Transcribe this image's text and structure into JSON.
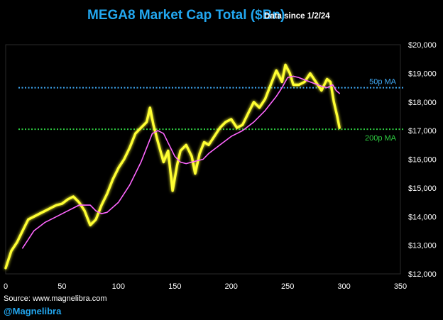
{
  "chart_data": {
    "type": "line",
    "title": "MEGA8 Market Cap Total ($Bn)",
    "subtitle": "Data since 1/2/24",
    "xlim": [
      0,
      350
    ],
    "ylim": [
      12000,
      20000
    ],
    "x_ticks": [
      0,
      50,
      100,
      150,
      200,
      250,
      300,
      350
    ],
    "y_ticks": [
      12000,
      13000,
      14000,
      15000,
      16000,
      17000,
      18000,
      19000,
      20000
    ],
    "y_tick_labels": [
      "$12,000",
      "$13,000",
      "$14,000",
      "$15,000",
      "$16,000",
      "$17,000",
      "$18,000",
      "$19,000",
      "$20,000"
    ],
    "grid": false,
    "series": [
      {
        "color": "#ffff33",
        "x": [
          0,
          5,
          10,
          15,
          20,
          25,
          30,
          35,
          40,
          45,
          50,
          55,
          60,
          65,
          70,
          75,
          80,
          85,
          90,
          95,
          100,
          105,
          110,
          115,
          120,
          125,
          128,
          131,
          135,
          140,
          144,
          148,
          152,
          155,
          160,
          165,
          168,
          172,
          176,
          180,
          185,
          190,
          195,
          200,
          205,
          210,
          215,
          220,
          225,
          230,
          235,
          240,
          245,
          248,
          252,
          255,
          260,
          265,
          270,
          275,
          280,
          285,
          288,
          291,
          294,
          296
        ],
        "values": [
          12200,
          12800,
          13100,
          13500,
          13900,
          14000,
          14100,
          14200,
          14300,
          14400,
          14450,
          14600,
          14700,
          14500,
          14200,
          13700,
          13900,
          14400,
          14800,
          15300,
          15700,
          16000,
          16400,
          16900,
          17100,
          17300,
          17800,
          17200,
          16600,
          15900,
          16300,
          14900,
          15800,
          16300,
          16500,
          16100,
          15500,
          16200,
          16600,
          16500,
          16800,
          17100,
          17300,
          17400,
          17100,
          17200,
          17600,
          18000,
          17800,
          18100,
          18600,
          19100,
          18700,
          19300,
          19000,
          18600,
          18600,
          18700,
          19000,
          18700,
          18400,
          18800,
          18700,
          18000,
          17500,
          17100
        ]
      },
      {
        "color": "#ff66ff",
        "x": [
          15,
          25,
          35,
          45,
          55,
          65,
          75,
          80,
          85,
          90,
          100,
          110,
          120,
          125,
          130,
          135,
          140,
          145,
          150,
          155,
          160,
          165,
          170,
          175,
          180,
          190,
          200,
          210,
          220,
          230,
          240,
          245,
          250,
          255,
          260,
          270,
          280,
          285,
          290,
          293,
          296
        ],
        "values": [
          12900,
          13500,
          13800,
          14000,
          14200,
          14400,
          14400,
          14200,
          14100,
          14150,
          14500,
          15100,
          15900,
          16400,
          16900,
          17000,
          16900,
          16500,
          16100,
          15900,
          15850,
          15900,
          15950,
          16000,
          16200,
          16500,
          16800,
          17000,
          17300,
          17700,
          18200,
          18500,
          18850,
          18900,
          18850,
          18700,
          18550,
          18500,
          18600,
          18400,
          18300
        ]
      }
    ],
    "reference_lines": [
      {
        "label": "50p MA",
        "y": 18500,
        "color": "#3fa9f5"
      },
      {
        "label": "200p MA",
        "y": 17050,
        "color": "#2ecc40"
      }
    ]
  },
  "footer": {
    "source": "Source: www.magnelibra.com",
    "handle": "@Magnelibra"
  }
}
